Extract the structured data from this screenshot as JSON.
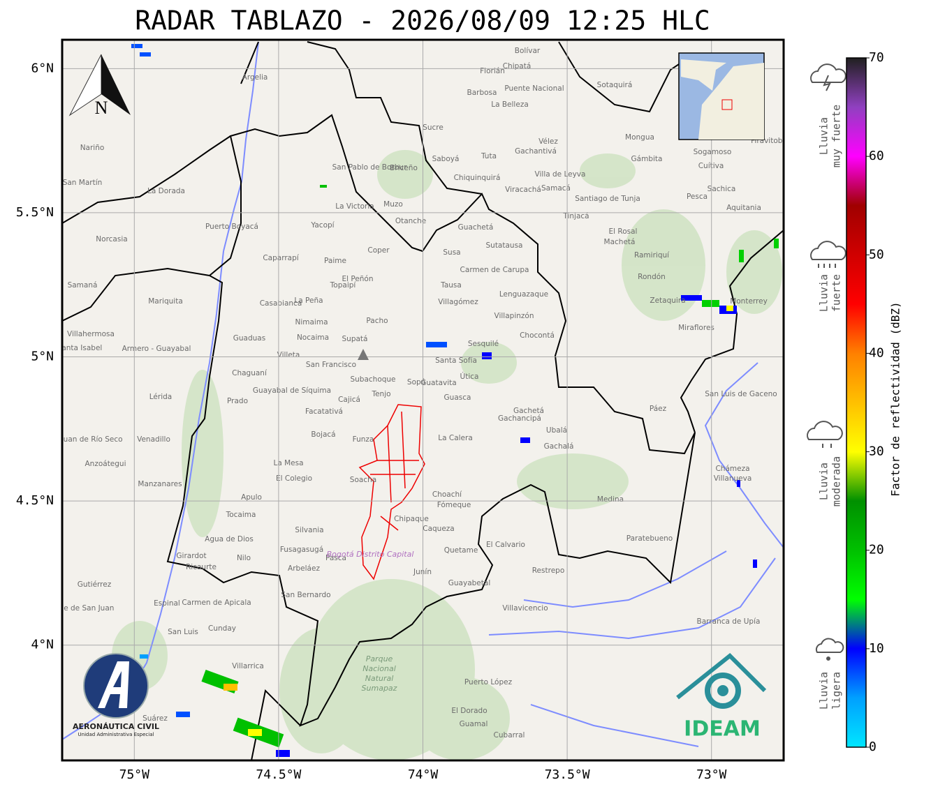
{
  "title": "RADAR TABLAZO - 2026/08/09 12:25 HLC",
  "map": {
    "xlim": [
      -75.25,
      -72.75
    ],
    "ylim": [
      3.6,
      6.1
    ],
    "xticks": [
      {
        "value": -75,
        "label": "75°W"
      },
      {
        "value": -74.5,
        "label": "74.5°W"
      },
      {
        "value": -74,
        "label": "74°W"
      },
      {
        "value": -73.5,
        "label": "73.5°W"
      },
      {
        "value": -73,
        "label": "73°W"
      }
    ],
    "yticks": [
      {
        "value": 6,
        "label": "6°N"
      },
      {
        "value": 5.5,
        "label": "5.5°N"
      },
      {
        "value": 5,
        "label": "5°N"
      },
      {
        "value": 4.5,
        "label": "4.5°N"
      },
      {
        "value": 4,
        "label": "4°N"
      }
    ],
    "grid": true
  },
  "places": [
    "Villa de Leyva",
    "Santiago de Tunja",
    "Chiquinquirá",
    "Sogamoso",
    "Aquitania",
    "Pesca",
    "La Victoria",
    "Muzo",
    "Yacopí",
    "Caparrapí",
    "Pacho",
    "La Peña",
    "Nimaima",
    "Nocaima",
    "Guaduas",
    "Villeta",
    "Supatá",
    "San Francisco",
    "Sesquilé",
    "Chaguaní",
    "Guayabal de Síquima",
    "Subachoque",
    "Tenjo",
    "Facatativá",
    "Bojacá",
    "Funza",
    "La Calera",
    "Guasca",
    "Gachetá",
    "Ubalá",
    "Gachalá",
    "La Mesa",
    "El Colegio",
    "Soacha",
    "Chipaque",
    "Choachí",
    "Fómeque",
    "Medina",
    "Paratebueno",
    "Caqueza",
    "Quetame",
    "El Calvario",
    "Restrepo",
    "Villavicencio",
    "Guayabetal",
    "Silvania",
    "Fusagasugá",
    "Pasca",
    "Arbeláez",
    "San Bernardo",
    "Nilo",
    "Agua de Dios",
    "Tocaima",
    "Apulo",
    "Girardot",
    "Ricaurte",
    "Espinal",
    "Carmen de Apicala",
    "Cunday",
    "Villarrica",
    "Mariquita",
    "Armero - Guayabal",
    "Lérida",
    "Venadillo",
    "Anzoátegui",
    "Manzanares",
    "Samaná",
    "Norcasia",
    "La Dorada",
    "Puerto Boyacá",
    "Argelia",
    "Nariño",
    "San Martín",
    "Cubarral",
    "El Dorado",
    "Guamal",
    "Puerto López",
    "Barranca de Upía",
    "Villanueva",
    "Chámeza",
    "Monterrey",
    "San Luis de Gaceno",
    "Páez",
    "Miraflores",
    "Zetaquira",
    "Rondón",
    "Ramiriquí",
    "Machetá",
    "Chocontá",
    "Villapinzón",
    "Lenguazaque",
    "Carmen de Carupa",
    "Susa",
    "Guachetá",
    "Sutatausa",
    "Tausa",
    "Villagómez",
    "El Peñón",
    "Topaipí",
    "Paime",
    "Coper",
    "Otanche",
    "San Pablo de Borbur",
    "Briceño",
    "Saboyá",
    "Tuta",
    "Gámbita",
    "Sotaquirá",
    "Mongua",
    "Firavitoba",
    "Cuítiva",
    "Sachica",
    "Samacá",
    "Tinjacá",
    "Viracachá",
    "El Rosal",
    "Cajicá",
    "Sopó",
    "Guatavita",
    "Útica",
    "Casabianca",
    "Villahermosa",
    "Santa Isabel",
    "San Juan de Río Seco",
    "Prado",
    "Suárez",
    "San Luis",
    "Valle de San Juan",
    "Gutiérrez",
    "Junín",
    "Gachancipá",
    "Santa Sofía",
    "Gachantivá",
    "Vélez",
    "Chipatá",
    "Bolívar",
    "Florián",
    "Sucre",
    "Barbosa",
    "Puente Nacional",
    "La Belleza"
  ],
  "park": [
    "Parque",
    "Nacional",
    "Natural",
    "Sumapaz"
  ],
  "district": "Bogotá Distrito Capital",
  "compass": "N",
  "logos": {
    "aerocivil": "AERONÁUTICA CIVIL",
    "aerocivil_sub": "Unidad Administrativa Especial",
    "ideam": "IDEAM"
  },
  "legend": [
    {
      "lines": [
        "Lluvia",
        "muy fuerte"
      ]
    },
    {
      "lines": [
        "Lluvia",
        "fuerte"
      ]
    },
    {
      "lines": [
        "Lluvia",
        "moderada"
      ]
    },
    {
      "lines": [
        "Lluvia",
        "ligera"
      ]
    }
  ],
  "colorbar": {
    "label": "Factor de reflectividad (dBZ)",
    "lim": [
      0,
      70
    ],
    "ticks": [
      0,
      10,
      20,
      30,
      40,
      50,
      60,
      70
    ],
    "colors": [
      "#00e6ff",
      "#00a0ff",
      "#0000ff",
      "#00ff00",
      "#00c000",
      "#009000",
      "#ffff00",
      "#ffc000",
      "#ff8000",
      "#ff0000",
      "#d00000",
      "#a00000",
      "#ff00ff",
      "#9040c0",
      "#202020"
    ]
  }
}
